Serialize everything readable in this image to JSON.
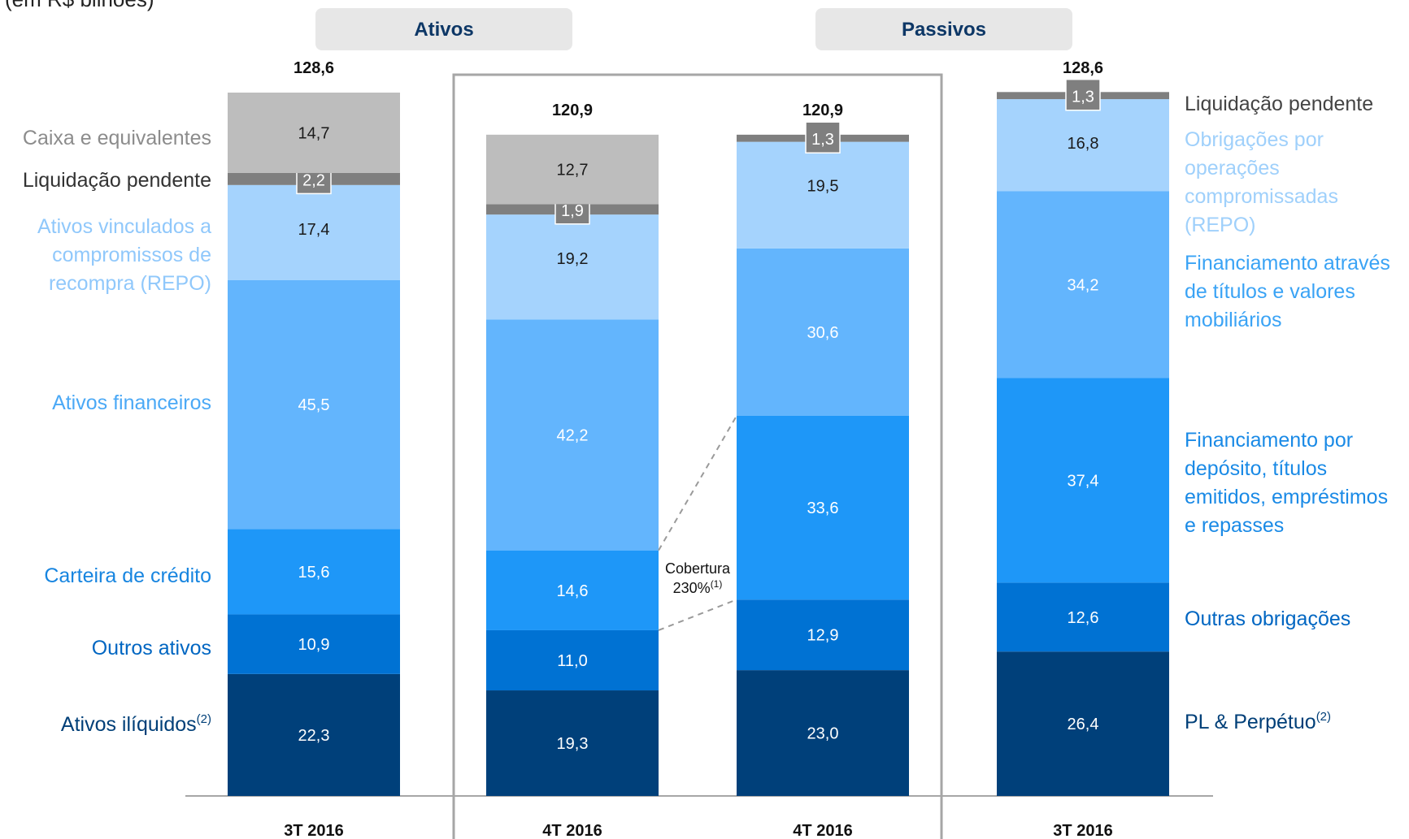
{
  "subtitle": "(em R$ bilhões)",
  "headers": {
    "assets": "Ativos",
    "liabilities": "Passivos"
  },
  "coverage": {
    "label": "Cobertura",
    "value": "230%",
    "note": "(1)"
  },
  "colors": {
    "grey": "#bdbdbd",
    "pending": "#7f7f7f",
    "repo": "#a5d3fd",
    "light_blue": "#63b5fd",
    "mid_blue": "#1e97f8",
    "blue": "#0072d3",
    "navy": "#00407a",
    "header_bg": "#e7e7e7",
    "header_text": "#0d3766"
  },
  "chart_data": {
    "type": "bar",
    "stacked": true,
    "categories": [
      "3T 2016",
      "4T 2016",
      "4T 2016",
      "3T 2016"
    ],
    "groups": [
      "Ativos",
      "Ativos",
      "Passivos",
      "Passivos"
    ],
    "totals": [
      "128,6",
      "120,9",
      "120,9",
      "128,6"
    ],
    "bars": [
      {
        "category": "3T 2016",
        "total": 128.6,
        "segments": [
          {
            "label": "Ativos ilíquidos",
            "sup": "(2)",
            "value": 22.3,
            "color": "#00407a"
          },
          {
            "label": "Outros ativos",
            "value": 10.9,
            "color": "#0072d3"
          },
          {
            "label": "Carteira de crédito",
            "value": 15.6,
            "color": "#1e97f8"
          },
          {
            "label": "Ativos financeiros",
            "value": 45.5,
            "color": "#63b5fd"
          },
          {
            "label": "Ativos vinculados a compromissos de recompra (REPO)",
            "value": 17.4,
            "color": "#a5d3fd"
          },
          {
            "label": "Liquidação pendente",
            "value": 2.2,
            "color": "#7f7f7f"
          },
          {
            "label": "Caixa e equivalentes",
            "value": 14.7,
            "color": "#bdbdbd"
          }
        ]
      },
      {
        "category": "4T 2016",
        "total": 120.9,
        "segments": [
          {
            "label": "Ativos ilíquidos",
            "value": 19.3,
            "color": "#00407a"
          },
          {
            "label": "Outros ativos",
            "value": 11.0,
            "color": "#0072d3"
          },
          {
            "label": "Carteira de crédito",
            "value": 14.6,
            "color": "#1e97f8"
          },
          {
            "label": "Ativos financeiros",
            "value": 42.2,
            "color": "#63b5fd"
          },
          {
            "label": "Ativos vinculados a compromissos de recompra (REPO)",
            "value": 19.2,
            "color": "#a5d3fd"
          },
          {
            "label": "Liquidação pendente",
            "value": 1.9,
            "color": "#7f7f7f"
          },
          {
            "label": "Caixa e equivalentes",
            "value": 12.7,
            "color": "#bdbdbd"
          }
        ]
      },
      {
        "category": "4T 2016",
        "total": 120.9,
        "segments": [
          {
            "label": "PL & Perpétuo",
            "value": 23.0,
            "color": "#00407a"
          },
          {
            "label": "Outras obrigações",
            "value": 12.9,
            "color": "#0072d3"
          },
          {
            "label": "Financiamento por depósito, títulos emitidos, empréstimos e repasses",
            "value": 33.6,
            "color": "#1e97f8"
          },
          {
            "label": "Financiamento através de títulos e valores mobiliários",
            "value": 30.6,
            "color": "#63b5fd"
          },
          {
            "label": "Obrigações por operações compromissadas (REPO)",
            "value": 19.5,
            "color": "#a5d3fd"
          },
          {
            "label": "Liquidação pendente",
            "value": 1.3,
            "color": "#7f7f7f"
          }
        ]
      },
      {
        "category": "3T 2016",
        "total": 128.6,
        "segments": [
          {
            "label": "PL & Perpétuo",
            "sup": "(2)",
            "value": 26.4,
            "color": "#00407a"
          },
          {
            "label": "Outras obrigações",
            "value": 12.6,
            "color": "#0072d3"
          },
          {
            "label": "Financiamento por depósito, títulos emitidos, empréstimos e repasses",
            "value": 37.4,
            "color": "#1e97f8"
          },
          {
            "label": "Financiamento através de títulos e valores mobiliários",
            "value": 34.2,
            "color": "#63b5fd"
          },
          {
            "label": "Obrigações por operações compromissadas (REPO)",
            "value": 16.8,
            "color": "#a5d3fd"
          },
          {
            "label": "Liquidação pendente",
            "value": 1.3,
            "color": "#7f7f7f"
          }
        ]
      }
    ],
    "value_labels": [
      [
        "22,3",
        "10,9",
        "15,6",
        "45,5",
        "17,4",
        "2,2",
        "14,7"
      ],
      [
        "19,3",
        "11,0",
        "14,6",
        "42,2",
        "19,2",
        "1,9",
        "12,7"
      ],
      [
        "23,0",
        "12,9",
        "33,6",
        "30,6",
        "19,5",
        "1,3"
      ],
      [
        "26,4",
        "12,6",
        "37,4",
        "34,2",
        "16,8",
        "1,3"
      ]
    ],
    "left_legend": [
      {
        "lines": [
          "Caixa e equivalentes"
        ],
        "color": "#8c8c8c"
      },
      {
        "lines": [
          "Liquidação pendente"
        ],
        "color": "#333333"
      },
      {
        "lines": [
          "Ativos vinculados a",
          "compromissos de",
          "recompra (REPO)"
        ],
        "color": "#90c8fb"
      },
      {
        "lines": [
          "Ativos financeiros"
        ],
        "color": "#4ba9f6"
      },
      {
        "lines": [
          "Carteira de crédito"
        ],
        "color": "#1785e0"
      },
      {
        "lines": [
          "Outros ativos"
        ],
        "color": "#0066c2"
      },
      {
        "lines": [
          "Ativos ilíquidos"
        ],
        "sup": "(2)",
        "color": "#003f78"
      }
    ],
    "right_legend": [
      {
        "lines": [
          "Liquidação pendente"
        ],
        "color": "#444444"
      },
      {
        "lines": [
          "Obrigações por",
          "operações",
          "compromissadas",
          "(REPO)"
        ],
        "color": "#9fd0fb"
      },
      {
        "lines": [
          "Financiamento através",
          "de títulos e valores",
          "mobiliários"
        ],
        "color": "#3aa3f5"
      },
      {
        "lines": [
          "Financiamento por",
          "depósito, títulos",
          "emitidos, empréstimos",
          "e repasses"
        ],
        "color": "#1a8ae6"
      },
      {
        "lines": [
          "Outras obrigações"
        ],
        "color": "#0066c2"
      },
      {
        "lines": [
          "PL & Perpétuo"
        ],
        "sup": "(2)",
        "color": "#003f78"
      }
    ]
  }
}
